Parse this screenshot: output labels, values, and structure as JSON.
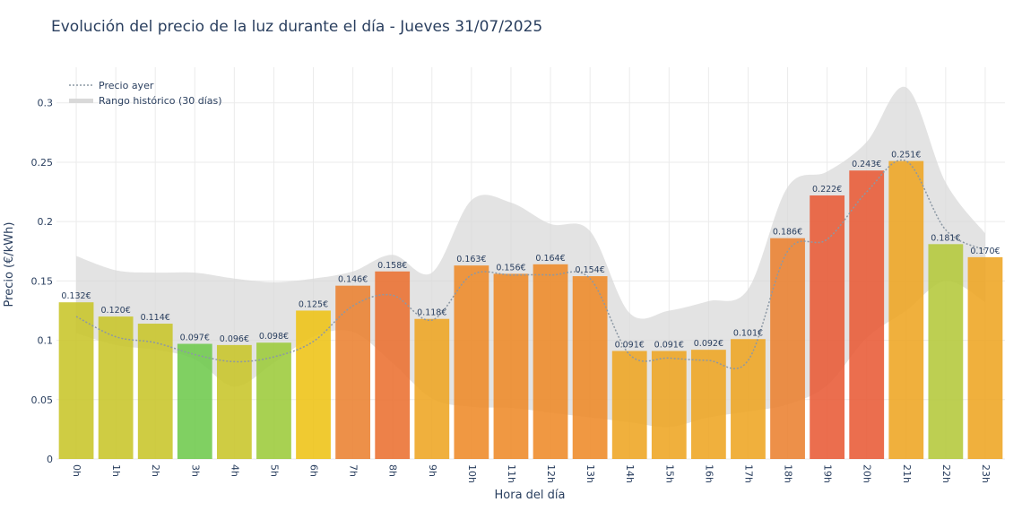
{
  "chart_data": {
    "type": "bar",
    "title": "Evolución del precio de la luz durante el día - Jueves 31/07/2025",
    "xlabel": "Hora del día",
    "ylabel": "Precio (€/kWh)",
    "ylim": [
      0,
      0.33
    ],
    "yticks": [
      0,
      0.05,
      0.1,
      0.15,
      0.2,
      0.25,
      0.3
    ],
    "ytick_labels": [
      "0",
      "0.05",
      "0.1",
      "0.15",
      "0.2",
      "0.25",
      "0.3"
    ],
    "grid": true,
    "legend_position": "top-left",
    "categories": [
      "0h",
      "1h",
      "2h",
      "3h",
      "4h",
      "5h",
      "6h",
      "7h",
      "8h",
      "9h",
      "10h",
      "11h",
      "12h",
      "13h",
      "14h",
      "15h",
      "16h",
      "17h",
      "18h",
      "19h",
      "20h",
      "21h",
      "22h",
      "23h"
    ],
    "values": [
      0.132,
      0.12,
      0.114,
      0.097,
      0.096,
      0.098,
      0.125,
      0.146,
      0.158,
      0.118,
      0.163,
      0.156,
      0.164,
      0.154,
      0.091,
      0.091,
      0.092,
      0.101,
      0.186,
      0.222,
      0.243,
      0.251,
      0.181,
      0.17
    ],
    "value_labels": [
      "0.132€",
      "0.120€",
      "0.114€",
      "0.097€",
      "0.096€",
      "0.098€",
      "0.125€",
      "0.146€",
      "0.158€",
      "0.118€",
      "0.163€",
      "0.156€",
      "0.164€",
      "0.154€",
      "0.091€",
      "0.091€",
      "0.092€",
      "0.101€",
      "0.186€",
      "0.222€",
      "0.243€",
      "0.251€",
      "0.181€",
      "0.170€"
    ],
    "bar_colors": [
      "#c8c529",
      "#c8c529",
      "#c8c529",
      "#6ec94c",
      "#c8c529",
      "#9ccb3a",
      "#eec314",
      "#ea8130",
      "#ea6f30",
      "#eea522",
      "#ee8a28",
      "#ee8a28",
      "#ee8a28",
      "#ee8a28",
      "#eea522",
      "#eea522",
      "#eea522",
      "#eea522",
      "#ea8130",
      "#e85a36",
      "#e85a36",
      "#eea522",
      "#b4c83a",
      "#eea522"
    ],
    "series": [
      {
        "name": "Precio ayer",
        "style": "dotted-line",
        "color": "#8c98a4",
        "values": [
          0.12,
          0.103,
          0.098,
          0.088,
          0.082,
          0.086,
          0.099,
          0.129,
          0.138,
          0.117,
          0.155,
          0.155,
          0.155,
          0.152,
          0.088,
          0.085,
          0.083,
          0.083,
          0.175,
          0.185,
          0.225,
          0.251,
          0.193,
          0.176
        ]
      },
      {
        "name": "Rango histórico (30 días)",
        "style": "band",
        "color": "#d9d9d9",
        "upper": [
          0.171,
          0.159,
          0.157,
          0.157,
          0.152,
          0.149,
          0.152,
          0.158,
          0.172,
          0.157,
          0.218,
          0.216,
          0.198,
          0.192,
          0.123,
          0.125,
          0.133,
          0.143,
          0.229,
          0.242,
          0.267,
          0.313,
          0.233,
          0.19
        ],
        "lower": [
          0.106,
          0.096,
          0.092,
          0.084,
          0.061,
          0.081,
          0.103,
          0.107,
          0.081,
          0.051,
          0.044,
          0.043,
          0.039,
          0.035,
          0.031,
          0.027,
          0.035,
          0.04,
          0.046,
          0.062,
          0.102,
          0.125,
          0.15,
          0.132
        ]
      }
    ]
  }
}
